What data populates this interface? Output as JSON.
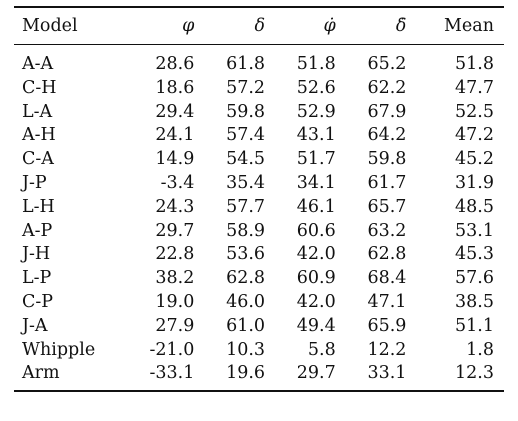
{
  "table": {
    "headers": {
      "model": "Model",
      "phi": "φ",
      "delta": "δ",
      "phi_dot": "φ̇",
      "delta_dot": "δ̇",
      "mean": "Mean"
    },
    "rows": [
      {
        "model": "A-A",
        "phi": "28.6",
        "delta": "61.8",
        "phi_dot": "51.8",
        "delta_dot": "65.2",
        "mean": "51.8"
      },
      {
        "model": "C-H",
        "phi": "18.6",
        "delta": "57.2",
        "phi_dot": "52.6",
        "delta_dot": "62.2",
        "mean": "47.7"
      },
      {
        "model": "L-A",
        "phi": "29.4",
        "delta": "59.8",
        "phi_dot": "52.9",
        "delta_dot": "67.9",
        "mean": "52.5"
      },
      {
        "model": "A-H",
        "phi": "24.1",
        "delta": "57.4",
        "phi_dot": "43.1",
        "delta_dot": "64.2",
        "mean": "47.2"
      },
      {
        "model": "C-A",
        "phi": "14.9",
        "delta": "54.5",
        "phi_dot": "51.7",
        "delta_dot": "59.8",
        "mean": "45.2"
      },
      {
        "model": "J-P",
        "phi": "-3.4",
        "delta": "35.4",
        "phi_dot": "34.1",
        "delta_dot": "61.7",
        "mean": "31.9"
      },
      {
        "model": "L-H",
        "phi": "24.3",
        "delta": "57.7",
        "phi_dot": "46.1",
        "delta_dot": "65.7",
        "mean": "48.5"
      },
      {
        "model": "A-P",
        "phi": "29.7",
        "delta": "58.9",
        "phi_dot": "60.6",
        "delta_dot": "63.2",
        "mean": "53.1"
      },
      {
        "model": "J-H",
        "phi": "22.8",
        "delta": "53.6",
        "phi_dot": "42.0",
        "delta_dot": "62.8",
        "mean": "45.3"
      },
      {
        "model": "L-P",
        "phi": "38.2",
        "delta": "62.8",
        "phi_dot": "60.9",
        "delta_dot": "68.4",
        "mean": "57.6"
      },
      {
        "model": "C-P",
        "phi": "19.0",
        "delta": "46.0",
        "phi_dot": "42.0",
        "delta_dot": "47.1",
        "mean": "38.5"
      },
      {
        "model": "J-A",
        "phi": "27.9",
        "delta": "61.0",
        "phi_dot": "49.4",
        "delta_dot": "65.9",
        "mean": "51.1"
      },
      {
        "model": "Whipple",
        "phi": "-21.0",
        "delta": "10.3",
        "phi_dot": "5.8",
        "delta_dot": "12.2",
        "mean": "1.8"
      },
      {
        "model": "Arm",
        "phi": "-33.1",
        "delta": "19.6",
        "phi_dot": "29.7",
        "delta_dot": "33.1",
        "mean": "12.3"
      }
    ]
  }
}
